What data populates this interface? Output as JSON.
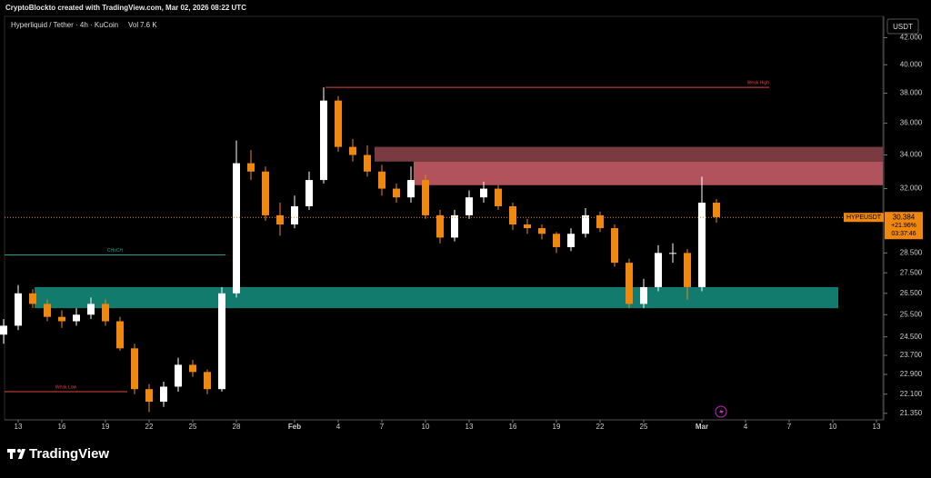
{
  "chart_data": {
    "type": "candlestick",
    "header": "CryptoBlockto created with TradingView.com, Mar 02, 2026 08:22 UTC",
    "title": "Hyperliquid / Tether · 4h · KuCoin",
    "volume_label": "Vol",
    "volume": "7.6 K",
    "currency": "USDT",
    "logo": "TradingView",
    "log_scale": true,
    "up_color": "#ffffff",
    "down_color": "#f0880f",
    "categories": [
      null,
      "13",
      null,
      null,
      "16",
      null,
      null,
      "19",
      null,
      null,
      "22",
      null,
      null,
      "25",
      null,
      null,
      "28",
      null,
      null,
      null,
      "Feb",
      null,
      null,
      "4",
      null,
      null,
      "7",
      null,
      null,
      "10",
      null,
      null,
      "13",
      null,
      null,
      "16",
      null,
      null,
      "19",
      null,
      null,
      "22",
      null,
      null,
      "25",
      null,
      null,
      null,
      "Mar",
      null,
      null,
      "4",
      null,
      null,
      "7",
      null,
      null,
      "10",
      null,
      null,
      "13",
      null
    ],
    "open": [
      24.6,
      25.0,
      26.5,
      26.0,
      25.4,
      25.2,
      25.5,
      26.0,
      25.2,
      24.0,
      22.3,
      21.8,
      22.4,
      23.3,
      23.0,
      22.3,
      26.5,
      33.5,
      33.0,
      30.5,
      30.0,
      31.0,
      32.5,
      37.5,
      34.5,
      34.0,
      33.0,
      32.0,
      31.5,
      32.5,
      30.5,
      29.3,
      30.5,
      31.5,
      32.0,
      31.0,
      30.0,
      29.8,
      29.5,
      28.8,
      29.5,
      30.5,
      29.8,
      28.0,
      26.0,
      26.8,
      28.5,
      28.5,
      26.8,
      31.2,
      null,
      null,
      null,
      null,
      null,
      null,
      null,
      null,
      null,
      null,
      null,
      null
    ],
    "high": [
      25.3,
      26.9,
      26.7,
      26.2,
      25.7,
      25.8,
      26.3,
      26.2,
      25.4,
      24.2,
      22.5,
      22.6,
      23.6,
      23.5,
      23.1,
      26.8,
      34.9,
      34.3,
      33.3,
      31.2,
      31.6,
      33.0,
      38.4,
      37.8,
      35.0,
      34.6,
      33.4,
      32.3,
      33.3,
      32.8,
      30.8,
      30.8,
      31.9,
      32.4,
      32.2,
      31.2,
      30.3,
      30.0,
      29.6,
      29.8,
      30.9,
      30.7,
      30.0,
      28.2,
      27.2,
      28.9,
      29.0,
      28.7,
      32.7,
      31.4,
      null,
      null,
      null,
      null,
      null,
      null,
      null,
      null,
      null,
      null,
      null,
      null
    ],
    "low": [
      24.2,
      24.8,
      25.8,
      25.2,
      24.9,
      25.0,
      25.3,
      25.0,
      23.9,
      22.1,
      21.4,
      21.6,
      22.2,
      22.8,
      22.1,
      22.2,
      26.3,
      32.5,
      30.2,
      29.4,
      29.8,
      30.8,
      32.3,
      34.2,
      33.6,
      32.7,
      31.6,
      31.2,
      31.2,
      30.3,
      29.0,
      29.1,
      30.3,
      31.2,
      30.8,
      29.7,
      29.5,
      29.2,
      28.5,
      28.6,
      29.3,
      29.6,
      27.8,
      25.8,
      25.8,
      26.6,
      28.0,
      26.2,
      26.6,
      30.1,
      null,
      null,
      null,
      null,
      null,
      null,
      null,
      null,
      null,
      null,
      null,
      null
    ],
    "close": [
      25.0,
      26.5,
      26.0,
      25.4,
      25.2,
      25.5,
      26.0,
      25.2,
      24.0,
      22.3,
      21.8,
      22.4,
      23.3,
      23.0,
      22.3,
      26.5,
      33.5,
      33.0,
      30.5,
      30.0,
      31.0,
      32.5,
      37.5,
      34.5,
      34.0,
      33.0,
      32.0,
      31.5,
      32.5,
      30.5,
      29.3,
      30.5,
      31.5,
      32.0,
      31.0,
      30.0,
      29.8,
      29.5,
      28.8,
      29.5,
      30.5,
      29.8,
      28.0,
      26.0,
      26.8,
      28.5,
      28.5,
      26.8,
      31.2,
      30.4,
      null,
      null,
      null,
      null,
      null,
      null,
      null,
      null,
      null,
      null,
      null,
      null
    ],
    "ylim": [
      21.1,
      43.5
    ],
    "yticks": [
      {
        "value": 21.35,
        "label": "21.350"
      },
      {
        "value": 22.1,
        "label": "22.100"
      },
      {
        "value": 22.9,
        "label": "22.900"
      },
      {
        "value": 23.7,
        "label": "23.700"
      },
      {
        "value": 24.5,
        "label": "24.500"
      },
      {
        "value": 25.5,
        "label": "25.500"
      },
      {
        "value": 26.5,
        "label": "26.500"
      },
      {
        "value": 27.5,
        "label": "27.500"
      },
      {
        "value": 28.5,
        "label": "28.500"
      },
      {
        "value": 32,
        "label": "32.000"
      },
      {
        "value": 34,
        "label": "34.000"
      },
      {
        "value": 36,
        "label": "36.000"
      },
      {
        "value": 38,
        "label": "38.000"
      },
      {
        "value": 40,
        "label": "40.000"
      },
      {
        "value": 42,
        "label": "42.000"
      }
    ],
    "last_price": {
      "symbol": "HYPEUSDT",
      "value": 30.384,
      "label": "30.384",
      "change": "+21.96%",
      "countdown": "03:37:46",
      "color": "#f0880f"
    },
    "zones": [
      {
        "low": 33.6,
        "high": 34.5,
        "color": "#7a3a42"
      },
      {
        "low": 32.2,
        "high": 33.6,
        "color": "#b2535c"
      },
      {
        "low": 25.8,
        "high": 26.8,
        "color": "#137a6e"
      }
    ],
    "levels": [
      {
        "value": 38.4,
        "label": "Weak High",
        "color": "#e0443a"
      },
      {
        "value": 28.4,
        "label": "CHoCH",
        "color": "#1fa08e"
      },
      {
        "value": 22.2,
        "label": "Weak Low",
        "color": "#e0443a"
      }
    ]
  }
}
